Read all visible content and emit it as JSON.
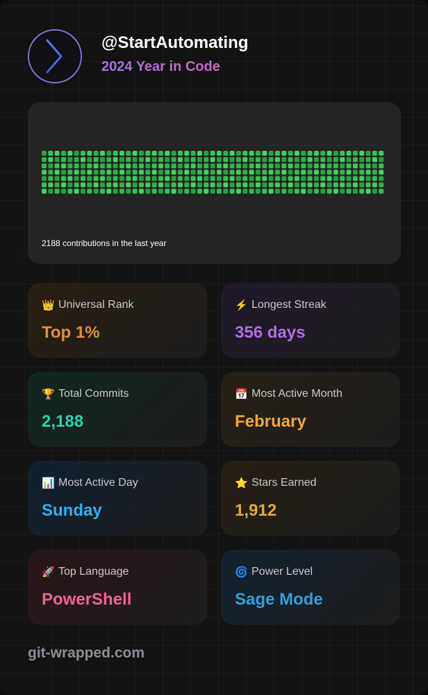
{
  "header": {
    "username": "@StartAutomating",
    "subtitle": "2024 Year in Code"
  },
  "contribution_graph": {
    "weeks": 53,
    "days": 7,
    "summary": "2188 contributions in the last year"
  },
  "stats": [
    {
      "icon": "crown-icon",
      "emoji": "👑",
      "label": "Universal Rank",
      "value": "Top 1%",
      "color": "#e0903a",
      "bg": "#2a1e12"
    },
    {
      "icon": "lightning-icon",
      "emoji": "⚡",
      "label": "Longest Streak",
      "value": "356 days",
      "color": "#b06ee6",
      "bg": "#21182a"
    },
    {
      "icon": "trophy-icon",
      "emoji": "🏆",
      "label": "Total Commits",
      "value": "2,188",
      "color": "#2fd0a8",
      "bg": "#11261f"
    },
    {
      "icon": "calendar-icon",
      "emoji": "📅",
      "label": "Most Active Month",
      "value": "February",
      "color": "#f2a541",
      "bg": "#272015"
    },
    {
      "icon": "bar-chart-icon",
      "emoji": "📊",
      "label": "Most Active Day",
      "value": "Sunday",
      "color": "#32aef0",
      "bg": "#112030"
    },
    {
      "icon": "star-icon",
      "emoji": "⭐",
      "label": "Stars Earned",
      "value": "1,912",
      "color": "#e5a63a",
      "bg": "#261f14"
    },
    {
      "icon": "rocket-icon",
      "emoji": "🚀",
      "label": "Top Language",
      "value": "PowerShell",
      "color": "#f06292",
      "bg": "#2a1518"
    },
    {
      "icon": "cyclone-icon",
      "emoji": "🌀",
      "label": "Power Level",
      "value": "Sage Mode",
      "color": "#2f9fd8",
      "bg": "#132230"
    }
  ],
  "footer": {
    "site": "git-wrapped.com"
  }
}
